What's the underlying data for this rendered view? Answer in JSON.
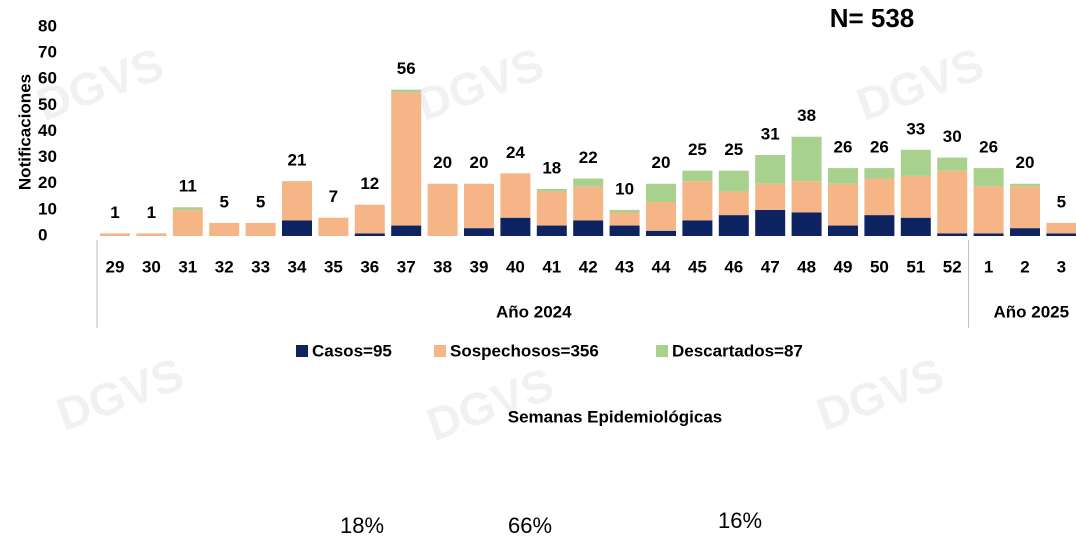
{
  "chart_data": {
    "type": "stacked_bar",
    "annotation": "N= 538",
    "y_label": "Notificaciones",
    "x_label": "Semanas Epidemiológicas",
    "watermark": "DGVS",
    "categories": [
      "29",
      "30",
      "31",
      "32",
      "33",
      "34",
      "35",
      "36",
      "37",
      "38",
      "39",
      "40",
      "41",
      "42",
      "43",
      "44",
      "45",
      "46",
      "47",
      "48",
      "49",
      "50",
      "51",
      "52",
      "1",
      "2",
      "3"
    ],
    "groups": [
      {
        "label": "Año 2024",
        "count": 24
      },
      {
        "label": "Año 2025",
        "count": 3
      }
    ],
    "series": [
      {
        "name": "Casos=95",
        "color": "#0d2461",
        "values": [
          0,
          0,
          0,
          0,
          0,
          6,
          0,
          1,
          4,
          0,
          3,
          7,
          4,
          6,
          4,
          2,
          6,
          8,
          10,
          9,
          4,
          8,
          7,
          1,
          1,
          3,
          1
        ]
      },
      {
        "name": "Sospechosos=356",
        "color": "#f5b586",
        "values": [
          1,
          1,
          10,
          5,
          5,
          15,
          7,
          11,
          51,
          20,
          17,
          17,
          13,
          13,
          5,
          11,
          15,
          9,
          10,
          12,
          16,
          14,
          16,
          24,
          18,
          16,
          4
        ]
      },
      {
        "name": "Descartados=87",
        "color": "#a9d18e",
        "values": [
          0,
          0,
          1,
          0,
          0,
          0,
          0,
          0,
          1,
          0,
          0,
          0,
          1,
          3,
          1,
          7,
          4,
          8,
          11,
          17,
          6,
          4,
          10,
          5,
          7,
          1,
          0
        ]
      }
    ],
    "totals": [
      1,
      1,
      11,
      5,
      5,
      21,
      7,
      12,
      56,
      20,
      20,
      24,
      18,
      22,
      10,
      20,
      25,
      25,
      31,
      38,
      26,
      26,
      33,
      30,
      26,
      20,
      5
    ],
    "percentages": [
      "18%",
      "66%",
      "16%"
    ],
    "ylim": [
      0,
      80
    ],
    "yticks": [
      0,
      10,
      20,
      30,
      40,
      50,
      60,
      70,
      80
    ],
    "grid": false
  }
}
